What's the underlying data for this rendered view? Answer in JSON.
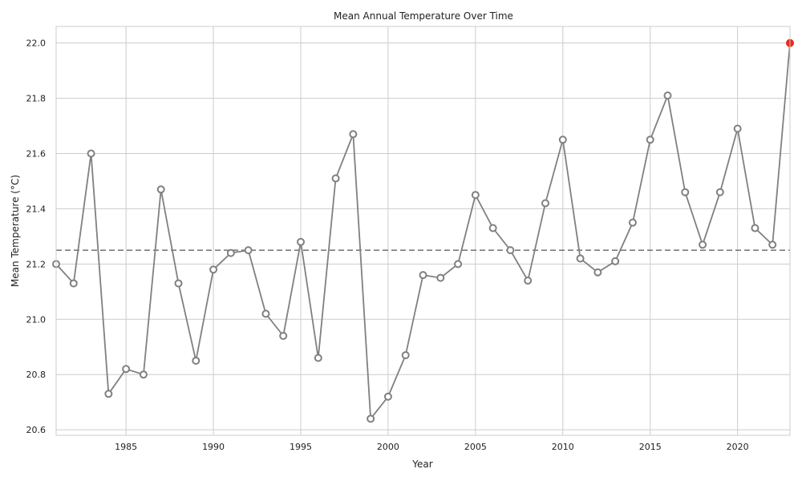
{
  "chart_data": {
    "type": "line",
    "title": "Mean Annual Temperature Over Time",
    "xlabel": "Year",
    "ylabel": "Mean Temperature (°C)",
    "xlim": [
      1981,
      2023
    ],
    "ylim": [
      20.58,
      22.06
    ],
    "xticks": [
      1985,
      1990,
      1995,
      2000,
      2005,
      2010,
      2015,
      2020
    ],
    "yticks": [
      20.6,
      20.8,
      21.0,
      21.2,
      21.4,
      21.6,
      21.8,
      22.0
    ],
    "grid": true,
    "reference_line": {
      "value": 21.25,
      "style": "dashed"
    },
    "highlight_point": {
      "x": 2023,
      "y": 22.0,
      "color": "#e8291c"
    },
    "line_color": "#808080",
    "series": [
      {
        "x": [
          1981,
          1982,
          1983,
          1984,
          1985,
          1986,
          1987,
          1988,
          1989,
          1990,
          1991,
          1992,
          1993,
          1994,
          1995,
          1996,
          1997,
          1998,
          1999,
          2000,
          2001,
          2002,
          2003,
          2004,
          2005,
          2006,
          2007,
          2008,
          2009,
          2010,
          2011,
          2012,
          2013,
          2014,
          2015,
          2016,
          2017,
          2018,
          2019,
          2020,
          2021,
          2022,
          2023
        ],
        "values": [
          21.2,
          21.13,
          21.6,
          20.73,
          20.82,
          20.8,
          21.47,
          21.13,
          20.85,
          21.18,
          21.24,
          21.25,
          21.02,
          20.94,
          21.28,
          20.86,
          21.51,
          21.67,
          20.64,
          20.72,
          20.87,
          21.16,
          21.15,
          21.2,
          21.45,
          21.33,
          21.25,
          21.14,
          21.42,
          21.65,
          21.22,
          21.17,
          21.21,
          21.35,
          21.65,
          21.81,
          21.46,
          21.27,
          21.46,
          21.69,
          21.33,
          21.27,
          22.0
        ]
      }
    ]
  }
}
